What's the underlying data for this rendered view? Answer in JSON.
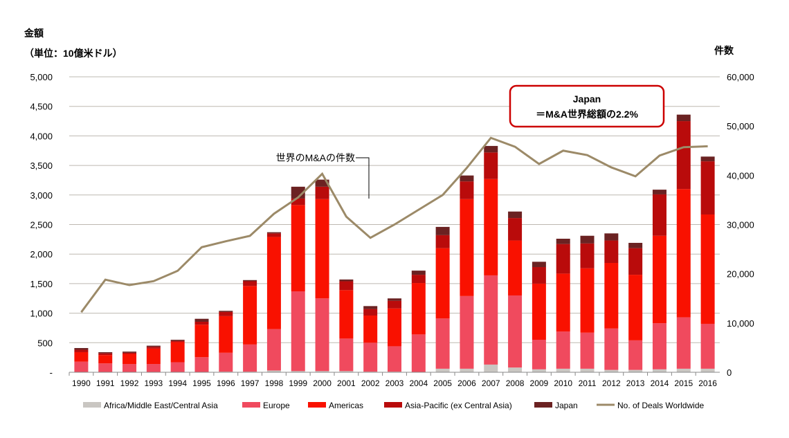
{
  "chart_data": {
    "type": "bar",
    "stacked": true,
    "title": "",
    "ylabel": "金額",
    "ylabel_unit": "（単位：10億米ドル）",
    "y2label": "件数",
    "ylim": [
      0,
      5000
    ],
    "y2lim": [
      0,
      60000
    ],
    "yticks": [
      "-",
      "500",
      "1,000",
      "1,500",
      "2,000",
      "2,500",
      "3,000",
      "3,500",
      "4,000",
      "4,500",
      "5,000"
    ],
    "y2ticks": [
      "0",
      "10,000",
      "20,000",
      "30,000",
      "40,000",
      "50,000",
      "60,000"
    ],
    "categories": [
      "1990",
      "1991",
      "1992",
      "1993",
      "1994",
      "1995",
      "1996",
      "1997",
      "1998",
      "1999",
      "2000",
      "2001",
      "2002",
      "2003",
      "2004",
      "2005",
      "2006",
      "2007",
      "2008",
      "2009",
      "2010",
      "2011",
      "2012",
      "2013",
      "2014",
      "2015",
      "2016"
    ],
    "series": [
      {
        "name": "Africa/Middle East/Central Asia",
        "color": "#c9c6c2",
        "values": [
          0,
          0,
          0,
          0,
          0,
          0,
          10,
          10,
          30,
          20,
          20,
          20,
          10,
          10,
          5,
          60,
          60,
          130,
          80,
          50,
          60,
          60,
          40,
          40,
          50,
          60,
          60
        ]
      },
      {
        "name": "Europe",
        "color": "#f04a5e",
        "values": [
          180,
          150,
          140,
          140,
          170,
          255,
          320,
          460,
          700,
          1350,
          1230,
          550,
          490,
          430,
          635,
          850,
          1230,
          1510,
          1220,
          500,
          630,
          610,
          700,
          500,
          780,
          870,
          760
        ]
      },
      {
        "name": "Americas",
        "color": "#f91100",
        "values": [
          160,
          140,
          170,
          260,
          340,
          550,
          620,
          990,
          1560,
          1460,
          1680,
          820,
          460,
          640,
          870,
          1190,
          1640,
          1630,
          930,
          950,
          980,
          1090,
          1110,
          1110,
          1480,
          2170,
          1850
        ]
      },
      {
        "name": "Asia-Pacific (ex Central Asia)",
        "color": "#b90b0b",
        "values": [
          40,
          30,
          20,
          30,
          20,
          50,
          70,
          80,
          60,
          110,
          210,
          150,
          110,
          130,
          140,
          220,
          300,
          450,
          380,
          280,
          500,
          420,
          380,
          450,
          700,
          1150,
          900
        ]
      },
      {
        "name": "Japan",
        "color": "#6b2222",
        "values": [
          30,
          20,
          20,
          20,
          20,
          50,
          20,
          20,
          20,
          200,
          120,
          30,
          50,
          40,
          70,
          140,
          100,
          110,
          110,
          90,
          90,
          130,
          120,
          90,
          80,
          110,
          80
        ]
      }
    ],
    "line": {
      "name": "No. of Deals Worldwide",
      "color": "#9c8a68",
      "axis": "right",
      "values": [
        12200,
        18800,
        17700,
        18500,
        20600,
        25400,
        26600,
        27700,
        32200,
        35500,
        40300,
        31600,
        27300,
        30000,
        33000,
        36000,
        41500,
        47600,
        45800,
        42300,
        45000,
        44100,
        41600,
        39800,
        44000,
        45700,
        45900
      ]
    },
    "annotations": {
      "callout": "世界のM&Aの件数",
      "box_line1": "Japan",
      "box_line2": "＝M&A世界総額の2.2%"
    },
    "grid": true,
    "legend": "bottom"
  }
}
